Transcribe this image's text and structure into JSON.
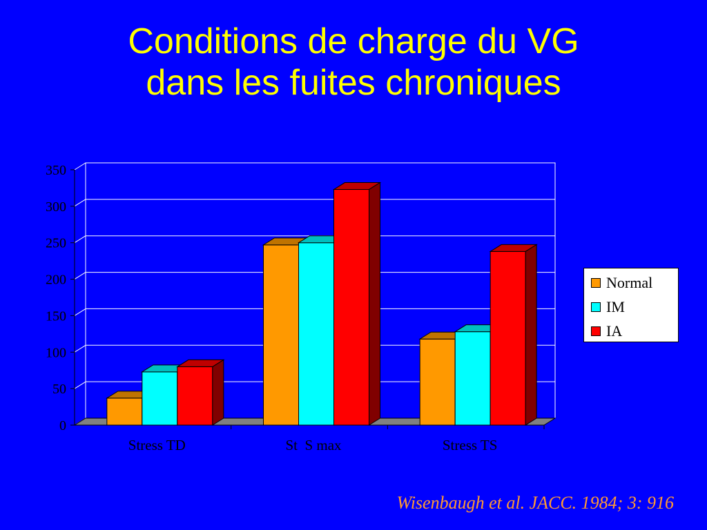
{
  "slide": {
    "title_line1": "Conditions de charge du VG",
    "title_line2": "dans les fuites chroniques",
    "citation": "Wisenbaugh et al. JACC. 1984; 3: 916"
  },
  "colors": {
    "background": "#0000ff",
    "title": "#ffff00",
    "citation": "#ff9933",
    "normal": "#ff9900",
    "im": "#00ffff",
    "ia": "#ff0000"
  },
  "chart_data": {
    "type": "bar",
    "style": "3d-clustered",
    "title": "",
    "xlabel": "",
    "ylabel": "",
    "categories": [
      "Stress TD",
      "St  S max",
      "Stress TS"
    ],
    "series": [
      {
        "name": "Normal",
        "values": [
          37,
          247,
          118
        ],
        "color": "#ff9900"
      },
      {
        "name": "IM",
        "values": [
          73,
          250,
          128
        ],
        "color": "#00ffff"
      },
      {
        "name": "IA",
        "values": [
          80,
          323,
          238
        ],
        "color": "#ff0000"
      }
    ],
    "ylim": [
      0,
      350
    ],
    "yticks": [
      0,
      50,
      100,
      150,
      200,
      250,
      300,
      350
    ],
    "grid": true,
    "legend_position": "right"
  }
}
